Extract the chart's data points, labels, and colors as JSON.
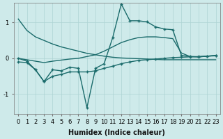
{
  "xlabel": "Humidex (Indice chaleur)",
  "bg_color": "#ceeaea",
  "line_color": "#1a6b6b",
  "grid_color": "#aed4d4",
  "xlim": [
    -0.5,
    23.5
  ],
  "ylim": [
    -1.55,
    1.55
  ],
  "xticks": [
    0,
    1,
    2,
    3,
    4,
    5,
    6,
    7,
    8,
    9,
    10,
    11,
    12,
    13,
    14,
    15,
    16,
    17,
    18,
    19,
    20,
    21,
    22,
    23
  ],
  "yticks": [
    -1,
    0,
    1
  ],
  "line_upper_x": [
    0,
    1,
    2,
    3,
    4,
    5,
    6,
    7,
    8,
    9,
    10,
    11,
    12,
    13,
    14,
    15,
    16,
    17,
    18,
    19,
    20,
    21,
    22,
    23
  ],
  "line_upper_y": [
    1.1,
    0.78,
    0.6,
    0.5,
    0.4,
    0.32,
    0.26,
    0.2,
    0.14,
    0.1,
    0.06,
    0.03,
    0.01,
    0.0,
    -0.01,
    -0.02,
    -0.03,
    -0.04,
    -0.04,
    -0.04,
    -0.04,
    -0.04,
    -0.04,
    -0.04
  ],
  "line_mid_upper_x": [
    0,
    2,
    3,
    4,
    5,
    6,
    7,
    9,
    10,
    11,
    12,
    13,
    14,
    15,
    16,
    17,
    18,
    19,
    20,
    21,
    22,
    23
  ],
  "line_mid_upper_y": [
    0.0,
    -0.08,
    -0.12,
    -0.08,
    -0.05,
    -0.02,
    0.0,
    0.1,
    0.2,
    0.32,
    0.44,
    0.52,
    0.58,
    0.6,
    0.6,
    0.58,
    0.55,
    0.15,
    0.05,
    0.04,
    0.06,
    0.08
  ],
  "line_spiky_x": [
    0,
    1,
    2,
    3,
    4,
    5,
    6,
    7,
    8,
    9,
    10,
    11,
    12,
    13,
    14,
    15,
    16,
    17,
    18,
    19,
    20,
    21,
    22,
    23
  ],
  "line_spiky_y": [
    0.0,
    -0.08,
    -0.32,
    -0.65,
    -0.32,
    -0.35,
    -0.25,
    -0.28,
    -1.38,
    -0.28,
    -0.15,
    0.58,
    1.52,
    1.05,
    1.05,
    1.02,
    0.88,
    0.82,
    0.8,
    0.08,
    0.05,
    0.04,
    0.06,
    0.08
  ],
  "line_lower_x": [
    0,
    1,
    2,
    3,
    4,
    5,
    6,
    7,
    8,
    9,
    10,
    11,
    12,
    13,
    14,
    15,
    16,
    17,
    18,
    19,
    20,
    21,
    22,
    23
  ],
  "line_lower_y": [
    -0.1,
    -0.12,
    -0.32,
    -0.65,
    -0.5,
    -0.45,
    -0.38,
    -0.38,
    -0.38,
    -0.35,
    -0.28,
    -0.22,
    -0.15,
    -0.1,
    -0.06,
    -0.04,
    -0.02,
    0.0,
    0.02,
    0.03,
    0.04,
    0.05,
    0.06,
    0.07
  ],
  "linewidth": 1.0,
  "markersize": 3.5
}
